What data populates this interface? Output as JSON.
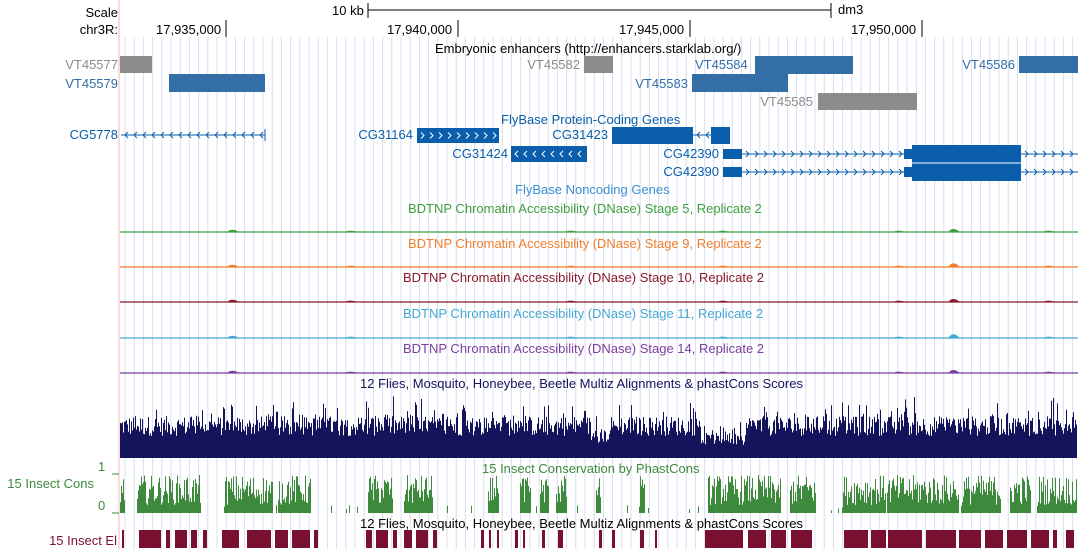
{
  "header": {
    "scale_label": "Scale",
    "chrom_label": "chr3R:",
    "scale_bar_text": "10 kb",
    "assembly": "dm3",
    "positions": [
      "17,935,000",
      "17,940,000",
      "17,945,000",
      "17,950,000"
    ]
  },
  "tracks": {
    "enhancers": {
      "title": "Embryonic enhancers (http://enhancers.starklab.org/)",
      "items": [
        {
          "name": "VT45577",
          "color": "#8c8c8c"
        },
        {
          "name": "VT45579",
          "color": "#336ea6"
        },
        {
          "name": "VT45582",
          "color": "#8c8c8c"
        },
        {
          "name": "VT45583",
          "color": "#336ea6"
        },
        {
          "name": "VT45584",
          "color": "#336ea6"
        },
        {
          "name": "VT45585",
          "color": "#8c8c8c"
        },
        {
          "name": "VT45586",
          "color": "#336ea6"
        }
      ]
    },
    "protein_coding": {
      "title": "FlyBase Protein-Coding Genes",
      "color": "#0a5eab",
      "genes": [
        {
          "name": "CG5778",
          "strand": "-"
        },
        {
          "name": "CG31164",
          "strand": "+"
        },
        {
          "name": "CG31424",
          "strand": "-"
        },
        {
          "name": "CG31423",
          "strand": "-"
        },
        {
          "name": "CG42390",
          "strand": "+"
        },
        {
          "name": "CG42390",
          "strand": "+"
        }
      ]
    },
    "noncoding": {
      "title": "FlyBase Noncoding Genes",
      "color": "#3b8fd6"
    },
    "dnase": [
      {
        "title": "BDTNP Chromatin Accessibility (DNase) Stage 5, Replicate 2",
        "color": "#3f9f3f"
      },
      {
        "title": "BDTNP Chromatin Accessibility (DNase) Stage 9, Replicate 2",
        "color": "#f07f2b"
      },
      {
        "title": "BDTNP Chromatin Accessibility (DNase) Stage 10, Replicate 2",
        "color": "#8b1a2b"
      },
      {
        "title": "BDTNP Chromatin Accessibility (DNase) Stage 11, Replicate 2",
        "color": "#44a8d4"
      },
      {
        "title": "BDTNP Chromatin Accessibility (DNase) Stage 14, Replicate 2",
        "color": "#7a3fa0"
      }
    ],
    "multiz": {
      "title": "12 Flies, Mosquito, Honeybee, Beetle Multiz Alignments & phastCons Scores",
      "color": "#14145c"
    },
    "phastcons": {
      "title": "15 Insect Conservation by PhastCons",
      "left_label": "15 Insect Cons",
      "axis_max": "1",
      "axis_min": "0",
      "color": "#3d8a3d"
    },
    "elements": {
      "title": "12 Flies, Mosquito, Honeybee, Beetle Multiz Alignments & phastCons Scores",
      "left_label": "15 Insect El",
      "color": "#7a1030"
    }
  }
}
